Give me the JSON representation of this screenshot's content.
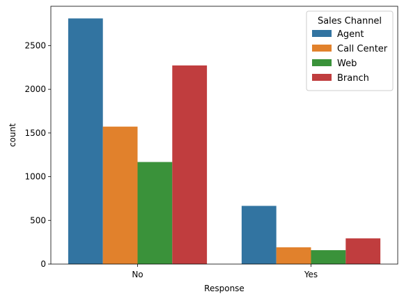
{
  "chart_data": {
    "type": "bar",
    "title": "",
    "xlabel": "Response",
    "ylabel": "count",
    "categories": [
      "No",
      "Yes"
    ],
    "ylim": [
      0,
      2950
    ],
    "yticks": [
      0,
      500,
      1000,
      1500,
      2000,
      2500
    ],
    "grid": false,
    "legend": {
      "title": "Sales Channel",
      "placement": "top-right"
    },
    "series": [
      {
        "name": "Agent",
        "color": "#3274a1",
        "values": [
          2811,
          666
        ]
      },
      {
        "name": "Call Center",
        "color": "#e1812c",
        "values": [
          1573,
          192
        ]
      },
      {
        "name": "Web",
        "color": "#3a923a",
        "values": [
          1168,
          159
        ]
      },
      {
        "name": "Branch",
        "color": "#c03d3e",
        "values": [
          2273,
          294
        ]
      }
    ]
  }
}
